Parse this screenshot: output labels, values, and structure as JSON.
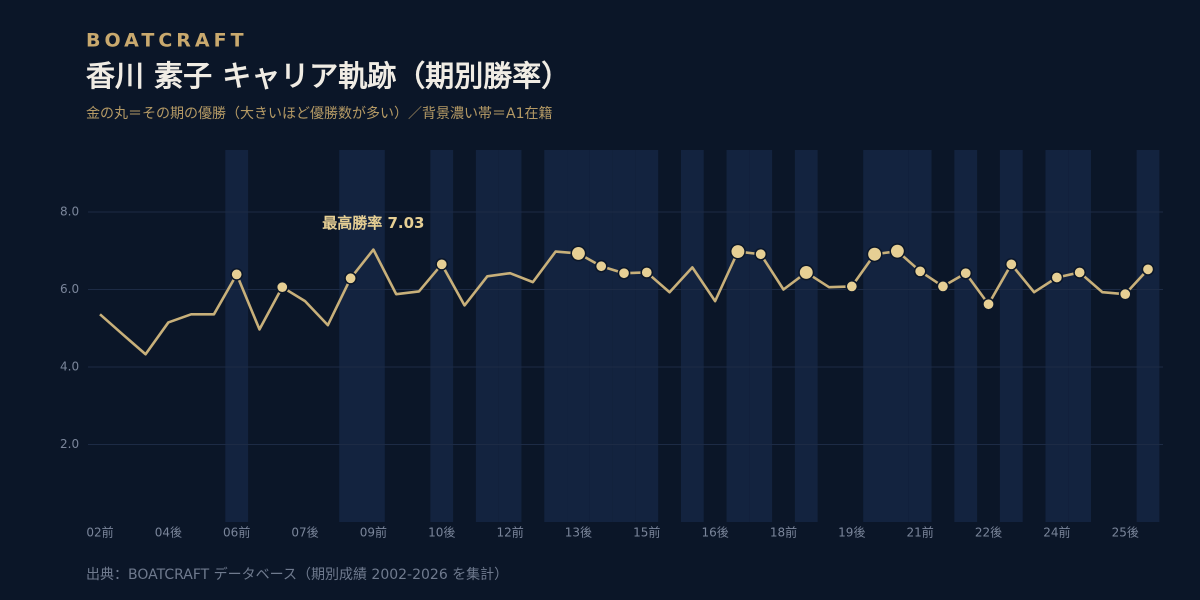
{
  "brand": "BOATCRAFT",
  "chart_data": {
    "type": "line",
    "title": "香川 素子 キャリア軌跡（期別勝率）",
    "subtitle": "金の丸＝その期の優勝（大きいほど優勝数が多い）／背景濃い帯＝A1在籍",
    "source": "出典：BOATCRAFT データベース（期別成績 2002-2026 を集計）",
    "categories": [
      "02前",
      null,
      null,
      "04後",
      null,
      null,
      "06前",
      null,
      null,
      "07後",
      null,
      null,
      "09前",
      null,
      null,
      "10後",
      null,
      null,
      "12前",
      null,
      null,
      "13後",
      null,
      null,
      "15前",
      null,
      null,
      "16後",
      null,
      null,
      "18前",
      null,
      null,
      "19後",
      null,
      null,
      "21前",
      null,
      null,
      "22後",
      null,
      null,
      "24前",
      null,
      null,
      "25後",
      null
    ],
    "series": [
      {
        "name": "勝率",
        "color": "#c8b07a",
        "values": [
          5.36,
          4.84,
          4.33,
          5.15,
          5.36,
          5.36,
          6.39,
          4.97,
          6.06,
          5.7,
          5.08,
          6.29,
          7.03,
          5.88,
          5.95,
          6.65,
          5.59,
          6.34,
          6.42,
          6.19,
          6.98,
          6.93,
          6.6,
          6.42,
          6.44,
          5.93,
          6.57,
          5.7,
          6.98,
          6.91,
          6.0,
          6.44,
          6.06,
          6.08,
          6.91,
          6.99,
          6.47,
          6.08,
          6.42,
          5.62,
          6.65,
          5.93,
          6.31,
          6.44,
          5.93,
          5.88,
          6.52
        ]
      },
      {
        "name": "優勝",
        "color": "#e6cf94",
        "values": [
          null,
          null,
          null,
          null,
          null,
          null,
          1,
          null,
          1,
          null,
          null,
          1,
          null,
          null,
          null,
          1,
          null,
          null,
          null,
          null,
          null,
          2,
          1,
          1,
          1,
          null,
          null,
          null,
          2,
          1,
          null,
          2,
          null,
          1,
          2,
          2,
          1,
          1,
          1,
          1,
          1,
          null,
          1,
          1,
          null,
          1,
          1
        ]
      }
    ],
    "a1": [
      0,
      0,
      0,
      0,
      0,
      0,
      1,
      0,
      0,
      0,
      0,
      1,
      1,
      0,
      0,
      1,
      0,
      1,
      1,
      0,
      1,
      1,
      1,
      1,
      1,
      0,
      1,
      0,
      1,
      1,
      0,
      1,
      0,
      0,
      1,
      1,
      1,
      0,
      1,
      0,
      1,
      0,
      1,
      1,
      0,
      0,
      1
    ],
    "band_color": "#13233f",
    "annotation": {
      "text": "最高勝率 7.03",
      "index": 12
    },
    "ylim": [
      0,
      9.6
    ],
    "yticks": [
      {
        "value": 2,
        "label": "2.0"
      },
      {
        "value": 4,
        "label": "4.0"
      },
      {
        "value": 6,
        "label": "6.0"
      },
      {
        "value": 8,
        "label": "8.0"
      }
    ],
    "grid": true
  }
}
